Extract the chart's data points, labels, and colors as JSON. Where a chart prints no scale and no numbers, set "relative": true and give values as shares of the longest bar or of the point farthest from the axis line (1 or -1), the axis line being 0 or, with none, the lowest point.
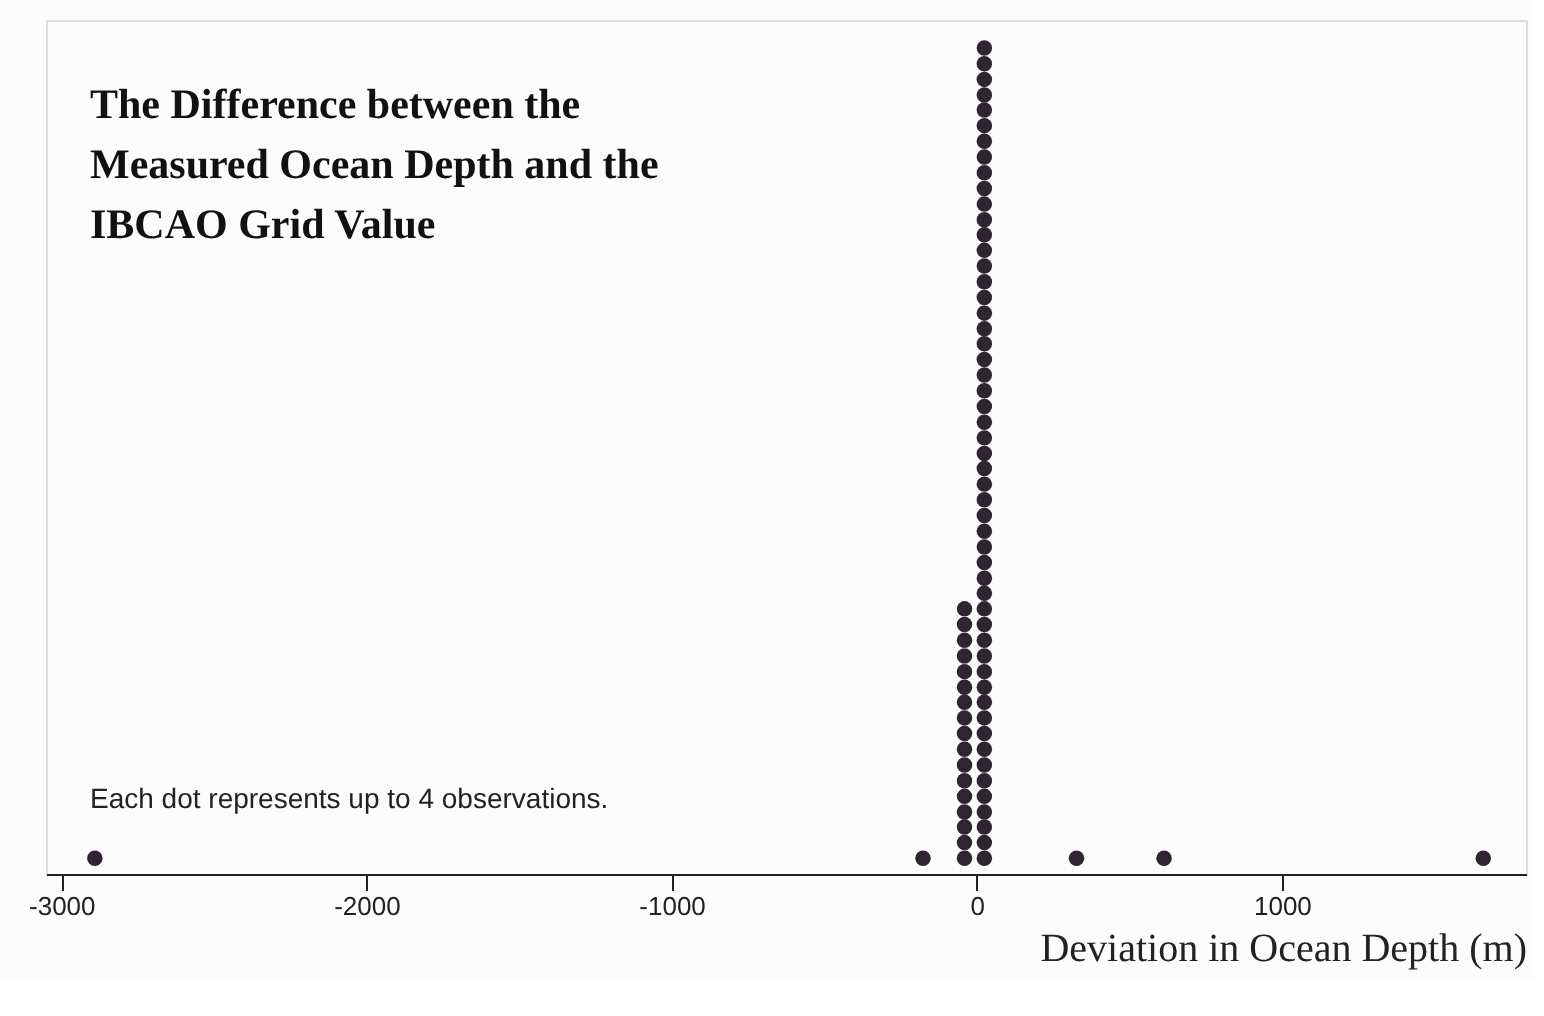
{
  "chart_data": {
    "type": "scatter",
    "title": "The Difference between the\nMeasured Ocean Depth and the\nIBCAO Grid Value",
    "xlabel": "Deviation in Ocean Depth (m)",
    "annotations": [
      "Each dot represents up to 4 observations."
    ],
    "x": [
      -2890,
      -176,
      327,
      614,
      1660,
      -40,
      -40,
      -40,
      -40,
      -40,
      -40,
      -40,
      -40,
      -40,
      -40,
      -40,
      -40,
      -40,
      -40,
      -40,
      -40,
      -40,
      25,
      25,
      25,
      25,
      25,
      25,
      25,
      25,
      25,
      25,
      25,
      25,
      25,
      25,
      25,
      25,
      25,
      25,
      25,
      25,
      25,
      25,
      25,
      25,
      25,
      25,
      25,
      25,
      25,
      25,
      25,
      25,
      25,
      25,
      25,
      25,
      25,
      25,
      25,
      25,
      25,
      25,
      25,
      25,
      25,
      25,
      25,
      25,
      25,
      25,
      25,
      25,
      25
    ],
    "values": [
      0.019,
      0.019,
      0.019,
      0.019,
      0.019,
      0.019,
      0.038,
      0.057,
      0.075,
      0.094,
      0.113,
      0.132,
      0.151,
      0.17,
      0.189,
      0.208,
      0.226,
      0.245,
      0.264,
      0.283,
      0.302,
      0.321,
      0.019,
      0.038,
      0.057,
      0.075,
      0.094,
      0.113,
      0.132,
      0.151,
      0.17,
      0.189,
      0.208,
      0.226,
      0.245,
      0.264,
      0.283,
      0.302,
      0.321,
      0.34,
      0.358,
      0.377,
      0.396,
      0.415,
      0.434,
      0.453,
      0.472,
      0.491,
      0.509,
      0.528,
      0.547,
      0.566,
      0.585,
      0.604,
      0.623,
      0.642,
      0.66,
      0.679,
      0.698,
      0.717,
      0.736,
      0.755,
      0.774,
      0.792,
      0.811,
      0.83,
      0.849,
      0.868,
      0.887,
      0.906,
      0.925,
      0.943,
      0.962,
      0.981,
      1
    ],
    "relative": true,
    "color": "#2e2530",
    "marker": "circle",
    "xlim": [
      -3050,
      1800
    ],
    "xticks": [
      -3000,
      -2000,
      -1000,
      0,
      1000
    ],
    "tick_labels": "x",
    "grid": false
  }
}
